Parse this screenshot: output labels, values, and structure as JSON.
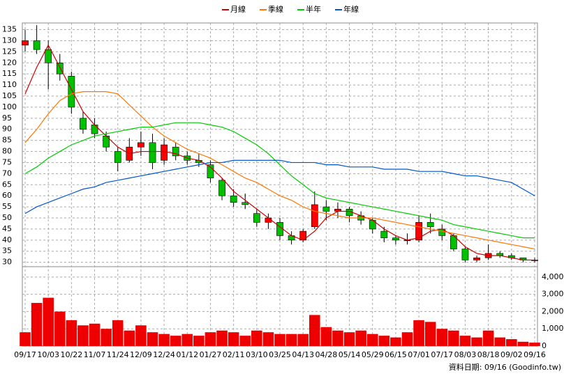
{
  "chart_data": {
    "type": "candlestick",
    "categories": [
      "09/17",
      null,
      "10/03",
      null,
      "10/22",
      null,
      "11/07",
      null,
      "11/24",
      null,
      "12/09",
      null,
      "12/24",
      null,
      "01/12",
      null,
      "01/27",
      null,
      "02/11",
      null,
      "03/10",
      null,
      "03/25",
      null,
      "04/13",
      null,
      "04/28",
      null,
      "05/14",
      null,
      "05/29",
      null,
      "06/15",
      null,
      "07/01",
      null,
      "07/17",
      null,
      "08/03",
      null,
      "08/18",
      null,
      "09/02",
      null,
      "09/16"
    ],
    "open": [
      128,
      130,
      126,
      120,
      114,
      95,
      92,
      87,
      80,
      76,
      82,
      84,
      76,
      82,
      78,
      76,
      74,
      67,
      60,
      57,
      52,
      48,
      48,
      42,
      40,
      46,
      55,
      53,
      54,
      51,
      49,
      44,
      41,
      40,
      40,
      48,
      45,
      42,
      36,
      31,
      32,
      34,
      33,
      32,
      31
    ],
    "high": [
      135,
      137,
      130,
      124,
      116,
      98,
      95,
      89,
      82,
      86,
      89,
      88,
      86,
      84,
      80,
      79,
      76,
      68,
      63,
      61,
      54,
      52,
      50,
      44,
      45,
      62,
      58,
      57,
      55,
      53,
      50,
      46,
      42,
      43,
      51,
      52,
      47,
      43,
      37,
      33,
      38,
      35,
      34,
      32,
      32
    ],
    "low": [
      125,
      124,
      108,
      112,
      97,
      88,
      86,
      80,
      71,
      75,
      78,
      72,
      74,
      76,
      74,
      73,
      66,
      58,
      55,
      54,
      46,
      45,
      40,
      38,
      39,
      45,
      49,
      50,
      48,
      47,
      43,
      39,
      38,
      38,
      39,
      43,
      40,
      35,
      30,
      30,
      31,
      32,
      31,
      30,
      30
    ],
    "close": [
      130,
      126,
      120,
      115,
      100,
      90,
      88,
      82,
      75,
      82,
      84,
      75,
      83,
      78,
      76,
      75,
      68,
      60,
      57,
      56,
      48,
      50,
      42,
      40,
      44,
      56,
      53,
      54,
      51,
      49,
      45,
      41,
      40,
      40,
      48,
      46,
      42,
      36,
      31,
      32,
      34,
      33,
      32,
      31,
      31
    ],
    "up_color": "#ff0000",
    "down_color": "#00c000",
    "volume": {
      "color": "#ee0000",
      "axis": "y2",
      "values": [
        800,
        2500,
        2800,
        2000,
        1500,
        1200,
        1300,
        1000,
        1500,
        900,
        1200,
        800,
        700,
        600,
        700,
        600,
        800,
        900,
        800,
        600,
        900,
        800,
        700,
        700,
        700,
        1800,
        1100,
        900,
        800,
        900,
        700,
        600,
        500,
        800,
        1500,
        1400,
        1000,
        900,
        600,
        500,
        900,
        500,
        400,
        250,
        200
      ]
    },
    "series": [
      {
        "name": "月線",
        "color": "#cc0000",
        "values": [
          106,
          118,
          128,
          118,
          108,
          98,
          92,
          87,
          82,
          79,
          80,
          80,
          80,
          79,
          77,
          76,
          73,
          68,
          62,
          58,
          54,
          50,
          46,
          42,
          40,
          44,
          50,
          53,
          53,
          51,
          49,
          45,
          42,
          40,
          41,
          44,
          45,
          42,
          37,
          34,
          33,
          33,
          32,
          31,
          31
        ]
      },
      {
        "name": "季線",
        "color": "#ff7700",
        "values": [
          84,
          90,
          97,
          103,
          106,
          107,
          107,
          107,
          106,
          101,
          96,
          91,
          87,
          84,
          81,
          79,
          77,
          74,
          71,
          68,
          66,
          63,
          60,
          58,
          55,
          53,
          52,
          51,
          50,
          50,
          50,
          49,
          48,
          47,
          46,
          45,
          44,
          43,
          42,
          41,
          40,
          39,
          38,
          37,
          36
        ]
      },
      {
        "name": "半年",
        "color": "#00cc00",
        "values": [
          70,
          73,
          77,
          80,
          83,
          85,
          87,
          88,
          89,
          90,
          91,
          91,
          92,
          93,
          93,
          93,
          92,
          91,
          89,
          86,
          83,
          79,
          74,
          69,
          65,
          61,
          59,
          58,
          57,
          56,
          55,
          54,
          53,
          52,
          51,
          50,
          49,
          47,
          46,
          45,
          44,
          43,
          42,
          41,
          41
        ]
      },
      {
        "name": "年線",
        "color": "#0055cc",
        "values": [
          52,
          55,
          57,
          59,
          61,
          63,
          64,
          66,
          67,
          68,
          69,
          70,
          71,
          72,
          73,
          74,
          75,
          75,
          76,
          76,
          76,
          76,
          76,
          75,
          75,
          75,
          74,
          74,
          73,
          73,
          73,
          72,
          72,
          72,
          71,
          71,
          71,
          70,
          69,
          69,
          68,
          67,
          66,
          63,
          60
        ]
      }
    ],
    "ylim": [
      28,
      138
    ],
    "yticks": [
      30,
      35,
      40,
      45,
      50,
      55,
      60,
      65,
      70,
      75,
      80,
      85,
      90,
      95,
      100,
      105,
      110,
      115,
      120,
      125,
      130,
      135
    ],
    "y2lim": [
      0,
      4600
    ],
    "y2ticks": [
      0,
      {
        "value": 1000,
        "label": "1,000"
      },
      {
        "value": 2000,
        "label": "2,000"
      },
      {
        "value": 3000,
        "label": "3,000"
      },
      {
        "value": 4000,
        "label": "4,000"
      }
    ],
    "grid": true,
    "legend": "top",
    "footnote": "資料日期: 09/16 (Goodinfo.tw)"
  }
}
